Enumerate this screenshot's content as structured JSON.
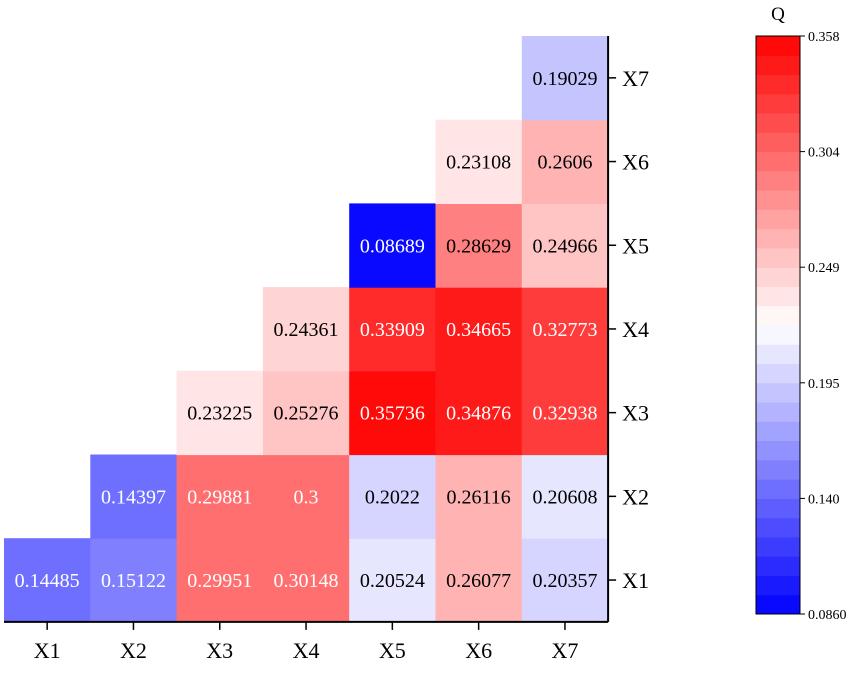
{
  "chart_data": {
    "type": "heatmap",
    "colorbar_title": "Q",
    "x_categories": [
      "X1",
      "X2",
      "X3",
      "X4",
      "X5",
      "X6",
      "X7"
    ],
    "y_categories": [
      "X1",
      "X2",
      "X3",
      "X4",
      "X5",
      "X6",
      "X7"
    ],
    "cells": [
      {
        "x": "X1",
        "y": "X1",
        "value": 0.14485,
        "label": "0.14485"
      },
      {
        "x": "X2",
        "y": "X1",
        "value": 0.15122,
        "label": "0.15122"
      },
      {
        "x": "X3",
        "y": "X1",
        "value": 0.29951,
        "label": "0.29951"
      },
      {
        "x": "X4",
        "y": "X1",
        "value": 0.30148,
        "label": "0.30148"
      },
      {
        "x": "X5",
        "y": "X1",
        "value": 0.20524,
        "label": "0.20524"
      },
      {
        "x": "X6",
        "y": "X1",
        "value": 0.26077,
        "label": "0.26077"
      },
      {
        "x": "X7",
        "y": "X1",
        "value": 0.20357,
        "label": "0.20357"
      },
      {
        "x": "X2",
        "y": "X2",
        "value": 0.14397,
        "label": "0.14397"
      },
      {
        "x": "X3",
        "y": "X2",
        "value": 0.29881,
        "label": "0.29881"
      },
      {
        "x": "X4",
        "y": "X2",
        "value": 0.3,
        "label": "0.3"
      },
      {
        "x": "X5",
        "y": "X2",
        "value": 0.2022,
        "label": "0.2022"
      },
      {
        "x": "X6",
        "y": "X2",
        "value": 0.26116,
        "label": "0.26116"
      },
      {
        "x": "X7",
        "y": "X2",
        "value": 0.20608,
        "label": "0.20608"
      },
      {
        "x": "X3",
        "y": "X3",
        "value": 0.23225,
        "label": "0.23225"
      },
      {
        "x": "X4",
        "y": "X3",
        "value": 0.25276,
        "label": "0.25276"
      },
      {
        "x": "X5",
        "y": "X3",
        "value": 0.35736,
        "label": "0.35736"
      },
      {
        "x": "X6",
        "y": "X3",
        "value": 0.34876,
        "label": "0.34876"
      },
      {
        "x": "X7",
        "y": "X3",
        "value": 0.32938,
        "label": "0.32938"
      },
      {
        "x": "X4",
        "y": "X4",
        "value": 0.24361,
        "label": "0.24361"
      },
      {
        "x": "X5",
        "y": "X4",
        "value": 0.33909,
        "label": "0.33909"
      },
      {
        "x": "X6",
        "y": "X4",
        "value": 0.34665,
        "label": "0.34665"
      },
      {
        "x": "X7",
        "y": "X4",
        "value": 0.32773,
        "label": "0.32773"
      },
      {
        "x": "X5",
        "y": "X5",
        "value": 0.08689,
        "label": "0.08689"
      },
      {
        "x": "X6",
        "y": "X5",
        "value": 0.28629,
        "label": "0.28629"
      },
      {
        "x": "X7",
        "y": "X5",
        "value": 0.24966,
        "label": "0.24966"
      },
      {
        "x": "X6",
        "y": "X6",
        "value": 0.23108,
        "label": "0.23108"
      },
      {
        "x": "X7",
        "y": "X6",
        "value": 0.2606,
        "label": "0.2606"
      },
      {
        "x": "X7",
        "y": "X7",
        "value": 0.19029,
        "label": "0.19029"
      }
    ],
    "color_scale": {
      "min": 0.086,
      "max": 0.358,
      "low_color": "#0000ff",
      "mid_color": "#ffffff",
      "high_color": "#ff0000",
      "levels": 30,
      "ticks": [
        "0.0860",
        "0.140",
        "0.195",
        "0.249",
        "0.304",
        "0.358"
      ]
    },
    "x_axis_position": "bottom",
    "y_axis_position": "right",
    "grid": false,
    "colorbar_position": "right"
  }
}
